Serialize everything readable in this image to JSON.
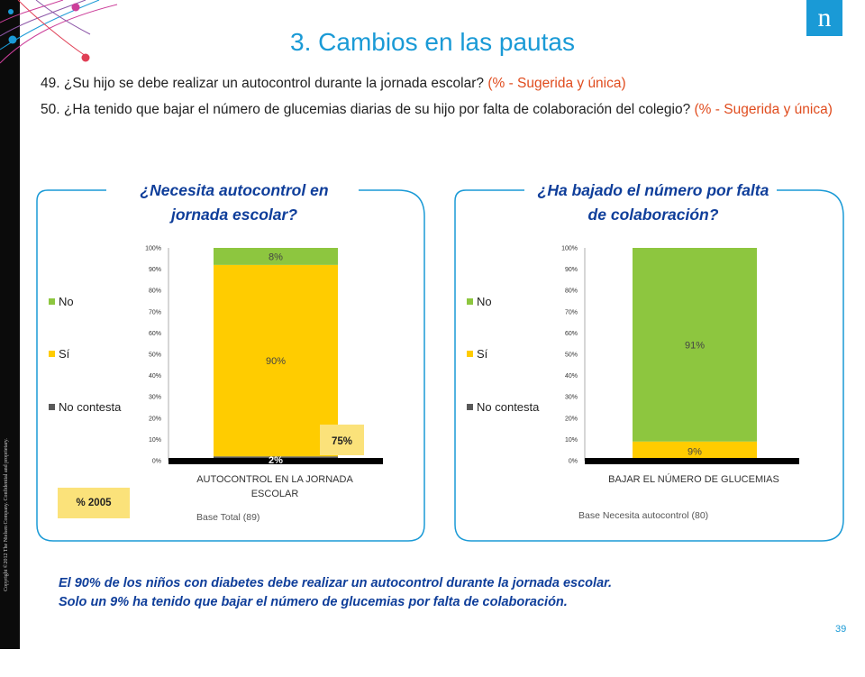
{
  "slide": {
    "title": "3. Cambios en las pautas",
    "logo_letter": "n",
    "copyright": "Copyright ©2012 The Nielsen Company. Confidential and proprietary.",
    "page_number": "39"
  },
  "questions": [
    {
      "text": "49. ¿Su hijo se debe realizar un autocontrol durante la jornada escolar? ",
      "note": "(% - Sugerida y única)"
    },
    {
      "text": "50. ¿Ha tenido que bajar el número de glucemias diarias de su hijo por falta de colaboración del colegio? ",
      "note": "(% - Sugerida y única)"
    }
  ],
  "legend": [
    "No",
    "Sí",
    "No contesta"
  ],
  "colors": {
    "No": "#8dc63f",
    "Sí": "#ffcc00",
    "No contesta": "#595959",
    "accent": "#1a9ad6",
    "note": "#0f3e9a",
    "red": "#e04c1e"
  },
  "y_ticks": [
    "0%",
    "10%",
    "20%",
    "30%",
    "40%",
    "50%",
    "60%",
    "70%",
    "80%",
    "90%",
    "100%"
  ],
  "panels": [
    {
      "title": "¿Necesita autocontrol en jornada escolar?",
      "base": "Base Total (89)",
      "tag_2005": "% 2005",
      "comparison_2005": "75%"
    },
    {
      "title": "¿Ha bajado el número por falta de colaboración?",
      "base": "Base  Necesita autocontrol (80)"
    }
  ],
  "chart_data": [
    {
      "type": "bar",
      "stacked": true,
      "categories": [
        "AUTOCONTROL EN LA JORNADA ESCOLAR"
      ],
      "series": [
        {
          "name": "No contesta",
          "values": [
            2
          ]
        },
        {
          "name": "Sí",
          "values": [
            90
          ]
        },
        {
          "name": "No",
          "values": [
            8
          ]
        }
      ],
      "data_labels": [
        "2%",
        "90%",
        "8%"
      ],
      "ylim": [
        0,
        100
      ],
      "comparison_2005": {
        "label": "% 2005",
        "value": "75%"
      }
    },
    {
      "type": "bar",
      "stacked": true,
      "categories": [
        "BAJAR EL NÚMERO DE GLUCEMIAS"
      ],
      "series": [
        {
          "name": "No contesta",
          "values": [
            0
          ]
        },
        {
          "name": "Sí",
          "values": [
            9
          ]
        },
        {
          "name": "No",
          "values": [
            91
          ]
        }
      ],
      "data_labels": [
        "",
        "9%",
        "91%"
      ],
      "ylim": [
        0,
        100
      ]
    }
  ],
  "conclusions": [
    "El 90% de los niños con diabetes debe realizar un autocontrol durante la jornada escolar.",
    "Solo un 9% ha tenido que bajar el número de glucemias por falta de colaboración."
  ]
}
